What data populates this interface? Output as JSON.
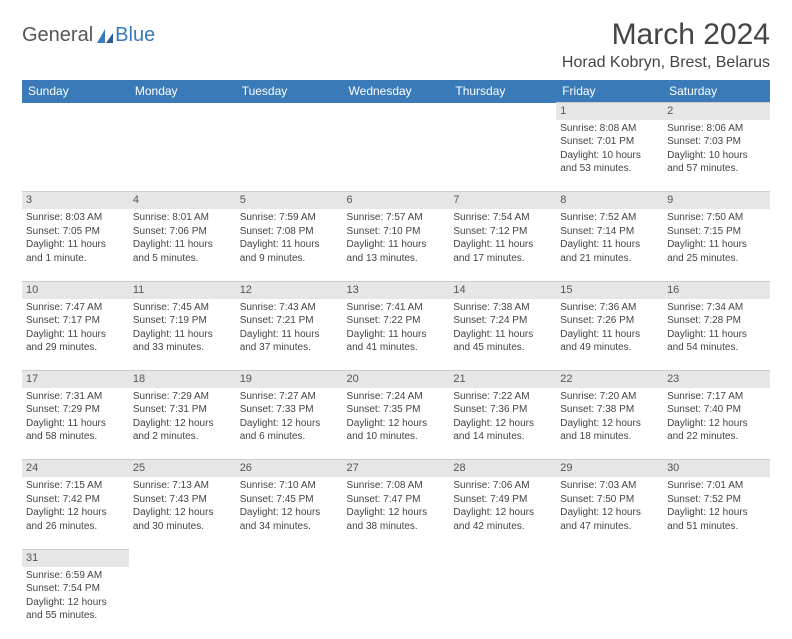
{
  "brand": {
    "general": "General",
    "blue": "Blue"
  },
  "title": "March 2024",
  "location": "Horad Kobryn, Brest, Belarus",
  "colors": {
    "header_bg": "#3a7ab8",
    "header_text": "#ffffff",
    "daynum_bg": "#e6e6e6",
    "text": "#444444",
    "page_bg": "#ffffff"
  },
  "weekdays": [
    "Sunday",
    "Monday",
    "Tuesday",
    "Wednesday",
    "Thursday",
    "Friday",
    "Saturday"
  ],
  "weeks": [
    [
      null,
      null,
      null,
      null,
      null,
      {
        "day": 1,
        "sunrise": "8:08 AM",
        "sunset": "7:01 PM",
        "daylight": "10 hours and 53 minutes."
      },
      {
        "day": 2,
        "sunrise": "8:06 AM",
        "sunset": "7:03 PM",
        "daylight": "10 hours and 57 minutes."
      }
    ],
    [
      {
        "day": 3,
        "sunrise": "8:03 AM",
        "sunset": "7:05 PM",
        "daylight": "11 hours and 1 minute."
      },
      {
        "day": 4,
        "sunrise": "8:01 AM",
        "sunset": "7:06 PM",
        "daylight": "11 hours and 5 minutes."
      },
      {
        "day": 5,
        "sunrise": "7:59 AM",
        "sunset": "7:08 PM",
        "daylight": "11 hours and 9 minutes."
      },
      {
        "day": 6,
        "sunrise": "7:57 AM",
        "sunset": "7:10 PM",
        "daylight": "11 hours and 13 minutes."
      },
      {
        "day": 7,
        "sunrise": "7:54 AM",
        "sunset": "7:12 PM",
        "daylight": "11 hours and 17 minutes."
      },
      {
        "day": 8,
        "sunrise": "7:52 AM",
        "sunset": "7:14 PM",
        "daylight": "11 hours and 21 minutes."
      },
      {
        "day": 9,
        "sunrise": "7:50 AM",
        "sunset": "7:15 PM",
        "daylight": "11 hours and 25 minutes."
      }
    ],
    [
      {
        "day": 10,
        "sunrise": "7:47 AM",
        "sunset": "7:17 PM",
        "daylight": "11 hours and 29 minutes."
      },
      {
        "day": 11,
        "sunrise": "7:45 AM",
        "sunset": "7:19 PM",
        "daylight": "11 hours and 33 minutes."
      },
      {
        "day": 12,
        "sunrise": "7:43 AM",
        "sunset": "7:21 PM",
        "daylight": "11 hours and 37 minutes."
      },
      {
        "day": 13,
        "sunrise": "7:41 AM",
        "sunset": "7:22 PM",
        "daylight": "11 hours and 41 minutes."
      },
      {
        "day": 14,
        "sunrise": "7:38 AM",
        "sunset": "7:24 PM",
        "daylight": "11 hours and 45 minutes."
      },
      {
        "day": 15,
        "sunrise": "7:36 AM",
        "sunset": "7:26 PM",
        "daylight": "11 hours and 49 minutes."
      },
      {
        "day": 16,
        "sunrise": "7:34 AM",
        "sunset": "7:28 PM",
        "daylight": "11 hours and 54 minutes."
      }
    ],
    [
      {
        "day": 17,
        "sunrise": "7:31 AM",
        "sunset": "7:29 PM",
        "daylight": "11 hours and 58 minutes."
      },
      {
        "day": 18,
        "sunrise": "7:29 AM",
        "sunset": "7:31 PM",
        "daylight": "12 hours and 2 minutes."
      },
      {
        "day": 19,
        "sunrise": "7:27 AM",
        "sunset": "7:33 PM",
        "daylight": "12 hours and 6 minutes."
      },
      {
        "day": 20,
        "sunrise": "7:24 AM",
        "sunset": "7:35 PM",
        "daylight": "12 hours and 10 minutes."
      },
      {
        "day": 21,
        "sunrise": "7:22 AM",
        "sunset": "7:36 PM",
        "daylight": "12 hours and 14 minutes."
      },
      {
        "day": 22,
        "sunrise": "7:20 AM",
        "sunset": "7:38 PM",
        "daylight": "12 hours and 18 minutes."
      },
      {
        "day": 23,
        "sunrise": "7:17 AM",
        "sunset": "7:40 PM",
        "daylight": "12 hours and 22 minutes."
      }
    ],
    [
      {
        "day": 24,
        "sunrise": "7:15 AM",
        "sunset": "7:42 PM",
        "daylight": "12 hours and 26 minutes."
      },
      {
        "day": 25,
        "sunrise": "7:13 AM",
        "sunset": "7:43 PM",
        "daylight": "12 hours and 30 minutes."
      },
      {
        "day": 26,
        "sunrise": "7:10 AM",
        "sunset": "7:45 PM",
        "daylight": "12 hours and 34 minutes."
      },
      {
        "day": 27,
        "sunrise": "7:08 AM",
        "sunset": "7:47 PM",
        "daylight": "12 hours and 38 minutes."
      },
      {
        "day": 28,
        "sunrise": "7:06 AM",
        "sunset": "7:49 PM",
        "daylight": "12 hours and 42 minutes."
      },
      {
        "day": 29,
        "sunrise": "7:03 AM",
        "sunset": "7:50 PM",
        "daylight": "12 hours and 47 minutes."
      },
      {
        "day": 30,
        "sunrise": "7:01 AM",
        "sunset": "7:52 PM",
        "daylight": "12 hours and 51 minutes."
      }
    ],
    [
      {
        "day": 31,
        "sunrise": "6:59 AM",
        "sunset": "7:54 PM",
        "daylight": "12 hours and 55 minutes."
      },
      null,
      null,
      null,
      null,
      null,
      null
    ]
  ],
  "labels": {
    "sunrise": "Sunrise:",
    "sunset": "Sunset:",
    "daylight": "Daylight:"
  }
}
